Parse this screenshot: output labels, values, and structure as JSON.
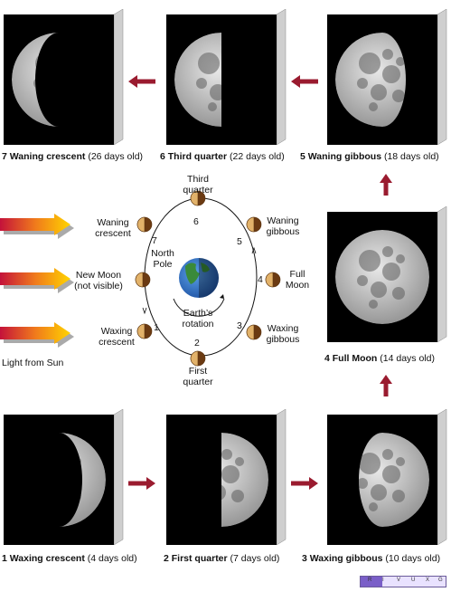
{
  "photos": [
    {
      "id": "p7",
      "num": "7",
      "name": "Waning crescent",
      "age": "(26 days old)"
    },
    {
      "id": "p6",
      "num": "6",
      "name": "Third quarter",
      "age": "(22 days old)"
    },
    {
      "id": "p5",
      "num": "5",
      "name": "Waning gibbous",
      "age": "(18 days old)"
    },
    {
      "id": "p4",
      "num": "4",
      "name": "Full Moon",
      "age": "(14 days old)"
    },
    {
      "id": "p1",
      "num": "1",
      "name": "Waxing crescent",
      "age": "(4 days old)"
    },
    {
      "id": "p2",
      "num": "2",
      "name": "First quarter",
      "age": "(7 days old)"
    },
    {
      "id": "p3",
      "num": "3",
      "name": "Waxing gibbous",
      "age": "(10 days old)"
    }
  ],
  "orbit": {
    "labels": {
      "third_quarter": [
        "Third",
        "quarter"
      ],
      "waning_gibbous": [
        "Waning",
        "gibbous"
      ],
      "full_moon": [
        "Full",
        "Moon"
      ],
      "waxing_gibbous": [
        "Waxing",
        "gibbous"
      ],
      "first_quarter": [
        "First",
        "quarter"
      ],
      "waxing_crescent": [
        "Waxing",
        "crescent"
      ],
      "new_moon": [
        "New Moon",
        "(not visible)"
      ],
      "waning_crescent": [
        "Waning",
        "crescent"
      ]
    },
    "numbers": {
      "n1": "1",
      "n2": "2",
      "n3": "3",
      "n4": "4",
      "n5": "5",
      "n6": "6",
      "n7": "7"
    },
    "north_pole": [
      "North",
      "Pole"
    ],
    "rotation": [
      "Earth’s",
      "rotation"
    ],
    "sunlight": "Light from Sun"
  },
  "spectrum_letters": [
    "R",
    "I",
    "V",
    "U",
    "X",
    "G"
  ],
  "colors": {
    "arrow": "#9a1b2f",
    "moon_light": "#e2b26a",
    "moon_dark": "#6b3a12",
    "sky": "#000000"
  }
}
